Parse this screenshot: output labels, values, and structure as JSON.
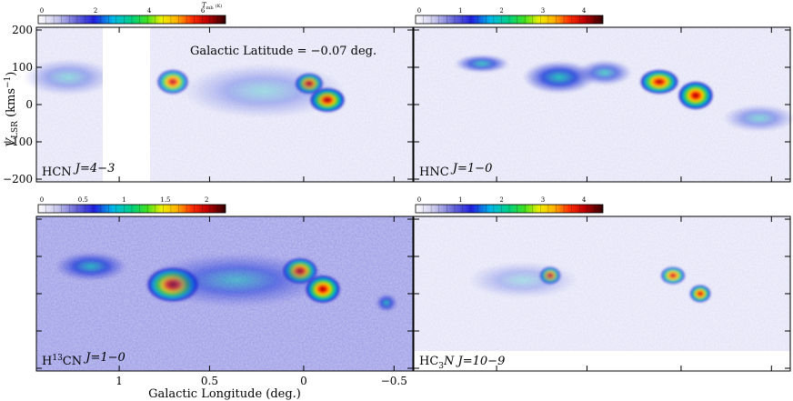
{
  "figure": {
    "annotation": "Galactic Latitude = −0.07 deg.",
    "xaxis_label": "Galactic Longitude (deg.)",
    "yaxis_label_main": "V",
    "yaxis_label_sub": "LSR",
    "yaxis_label_unit": " (kms",
    "yaxis_label_exp": "−1",
    "yaxis_label_close": ")",
    "colorbar_unit_main": "T",
    "colorbar_unit_sub": "mb",
    "colorbar_unit_k": "(K)"
  },
  "axes": {
    "y_ticks": [
      "200",
      "100",
      "0",
      "−100",
      "−200"
    ],
    "x_ticks": [
      "1",
      "0.5",
      "0",
      "−0.5"
    ]
  },
  "panels": [
    {
      "label_main": "HCN ",
      "label_sup": "",
      "label_mid": "",
      "label_sub": "",
      "label_trans": "J=4−3",
      "colorbar_ticks": [
        "0",
        "2",
        "4",
        "6"
      ],
      "blank_region": true
    },
    {
      "label_main": "HNC ",
      "label_sup": "",
      "label_mid": "",
      "label_sub": "",
      "label_trans": "J=1−0",
      "colorbar_ticks": [
        "0",
        "1",
        "2",
        "3",
        "4"
      ]
    },
    {
      "label_main": "H",
      "label_sup": "13",
      "label_mid": "CN ",
      "label_sub": "",
      "label_trans": "J=1−0",
      "colorbar_ticks": [
        "0",
        "0.5",
        "1",
        "1.5",
        "2"
      ]
    },
    {
      "label_main": "HC",
      "label_sup": "",
      "label_mid": "",
      "label_sub": "3",
      "label_trans": "N J=10−9",
      "colorbar_ticks": [
        "0",
        "1",
        "2",
        "3",
        "4"
      ]
    }
  ]
}
